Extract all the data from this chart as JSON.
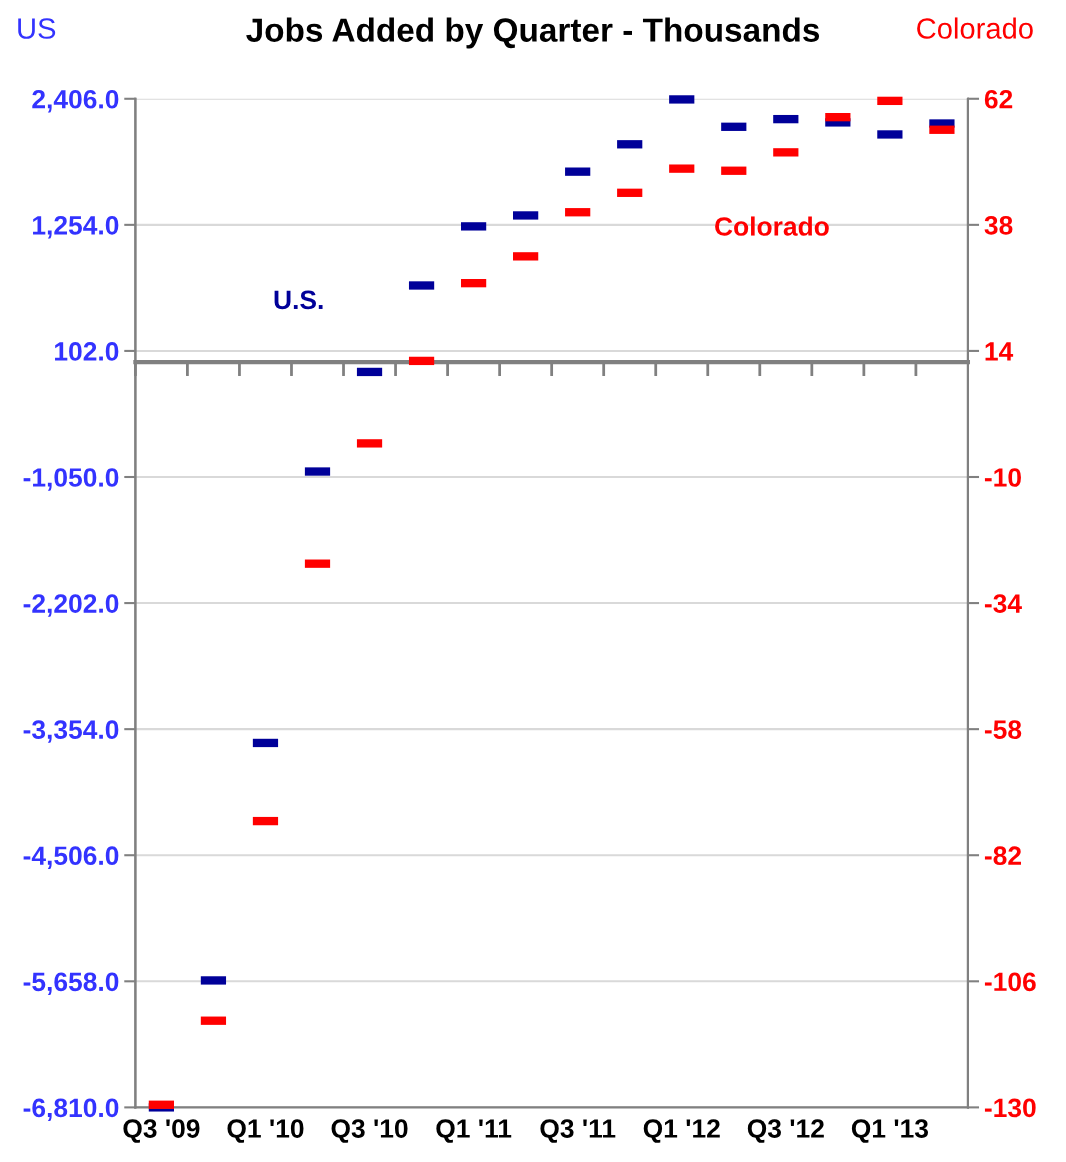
{
  "chart_data": {
    "type": "scatter",
    "title": "Jobs Added by Quarter - Thousands",
    "ylabel": "US",
    "y2label": "Colorado",
    "categories": [
      "Q3 '09",
      null,
      "Q1 '10",
      null,
      "Q3 '10",
      null,
      "Q1 '11",
      null,
      "Q3 '11",
      null,
      "Q1 '12",
      null,
      "Q3 '12",
      null,
      "Q1 '13",
      null
    ],
    "series": [
      {
        "name": "U.S.",
        "color": "#000099",
        "values": [
          -6810,
          -5650,
          -3480,
          -1000,
          -90,
          700,
          1240,
          1340,
          1740,
          1990,
          2400,
          2150,
          2220,
          2190,
          2080,
          2180
        ]
      },
      {
        "name": "Colorado",
        "color": "#ff0000",
        "axis": "y2",
        "values": [
          -129.5,
          -113.5,
          -75.5,
          -26.5,
          -3.6,
          12.1,
          26.9,
          32.0,
          40.4,
          44.1,
          48.7,
          48.3,
          51.8,
          58.5,
          61.6,
          56.1
        ]
      }
    ],
    "ylim": [
      -6810,
      2406
    ],
    "yticks": [
      {
        "value": -6810,
        "label": "-6,810.0"
      },
      {
        "value": -5658,
        "label": "-5,658.0"
      },
      {
        "value": -4506,
        "label": "-4,506.0"
      },
      {
        "value": -3354,
        "label": "-3,354.0"
      },
      {
        "value": -2202,
        "label": "-2,202.0"
      },
      {
        "value": -1050,
        "label": "-1,050.0"
      },
      {
        "value": 102,
        "label": "102.0"
      },
      {
        "value": 1254,
        "label": "1,254.0"
      },
      {
        "value": 2406,
        "label": "2,406.0"
      }
    ],
    "y2lim": [
      -130,
      62
    ],
    "y2ticks": [
      -130,
      -106,
      -82,
      -58,
      -34,
      -10,
      14,
      38,
      62
    ],
    "grid": "y",
    "legend": false
  }
}
